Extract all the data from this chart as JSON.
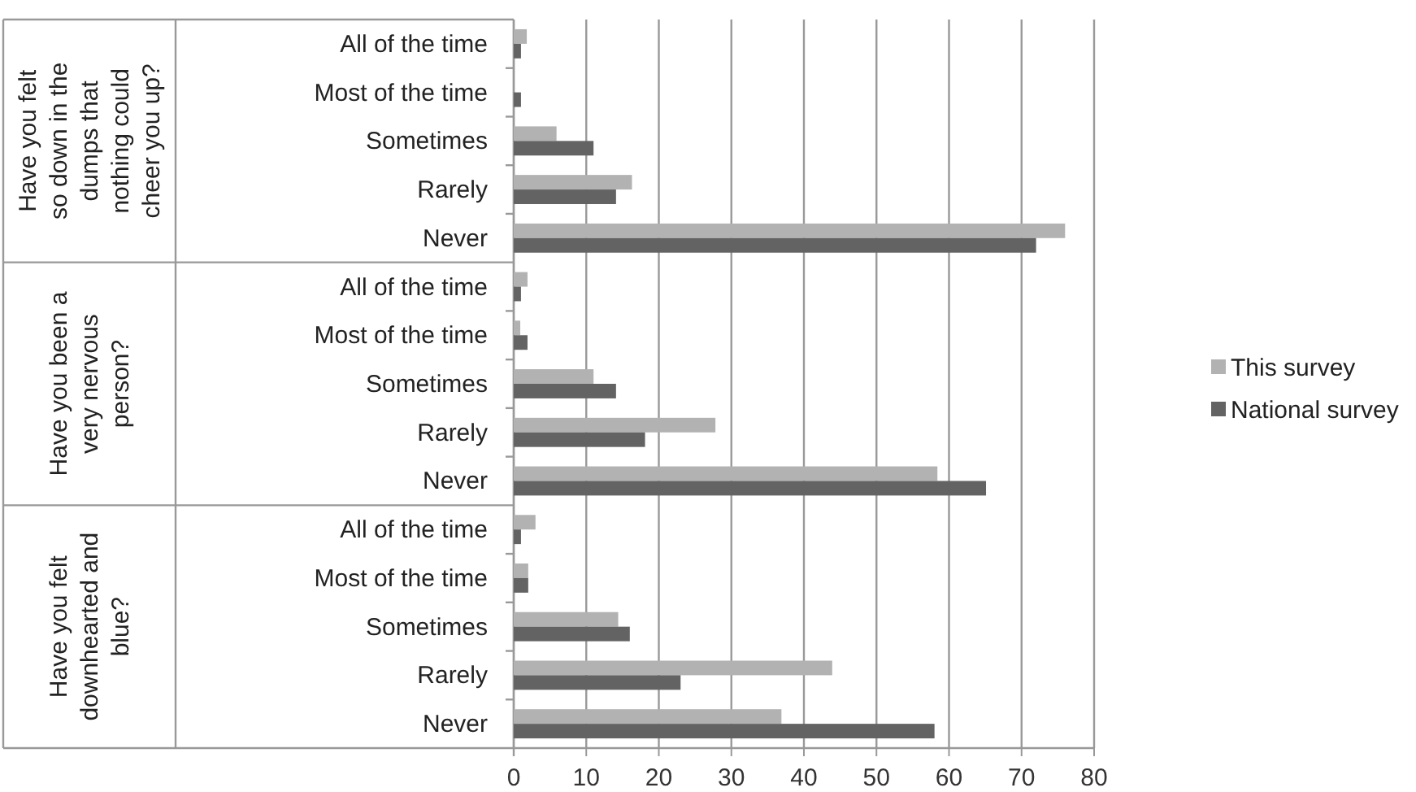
{
  "chart_data": {
    "type": "bar",
    "orientation": "horizontal",
    "categories": [
      "All of the time",
      "Most of the time",
      "Sometimes",
      "Rarely",
      "Never",
      "All of the time",
      "Most of the time",
      "Sometimes",
      "Rarely",
      "Never",
      "All of the time",
      "Most of the time",
      "Sometimes",
      "Rarely",
      "Never"
    ],
    "series": [
      {
        "name": "This survey",
        "color": "#b2b2b2",
        "values": [
          1.8,
          0,
          5.9,
          16.3,
          76,
          1.9,
          0.9,
          11,
          27.8,
          58.4,
          3,
          2,
          14.4,
          43.9,
          36.9
        ]
      },
      {
        "name": "National survey",
        "color": "#636363",
        "values": [
          1,
          1,
          11,
          14.1,
          72,
          1,
          1.9,
          14.1,
          18.1,
          65.1,
          1,
          2,
          16,
          23,
          58
        ]
      }
    ],
    "annotations": [
      "Have you felt so down in the dumps that nothing could cheer you up?",
      "Have you been a very nervous person?",
      "Have you felt downhearted and blue?"
    ],
    "xlim": [
      0,
      80
    ],
    "xticks": [
      0,
      10,
      20,
      30,
      40,
      50,
      60,
      70,
      80
    ],
    "grid": "x",
    "legend": "right"
  }
}
